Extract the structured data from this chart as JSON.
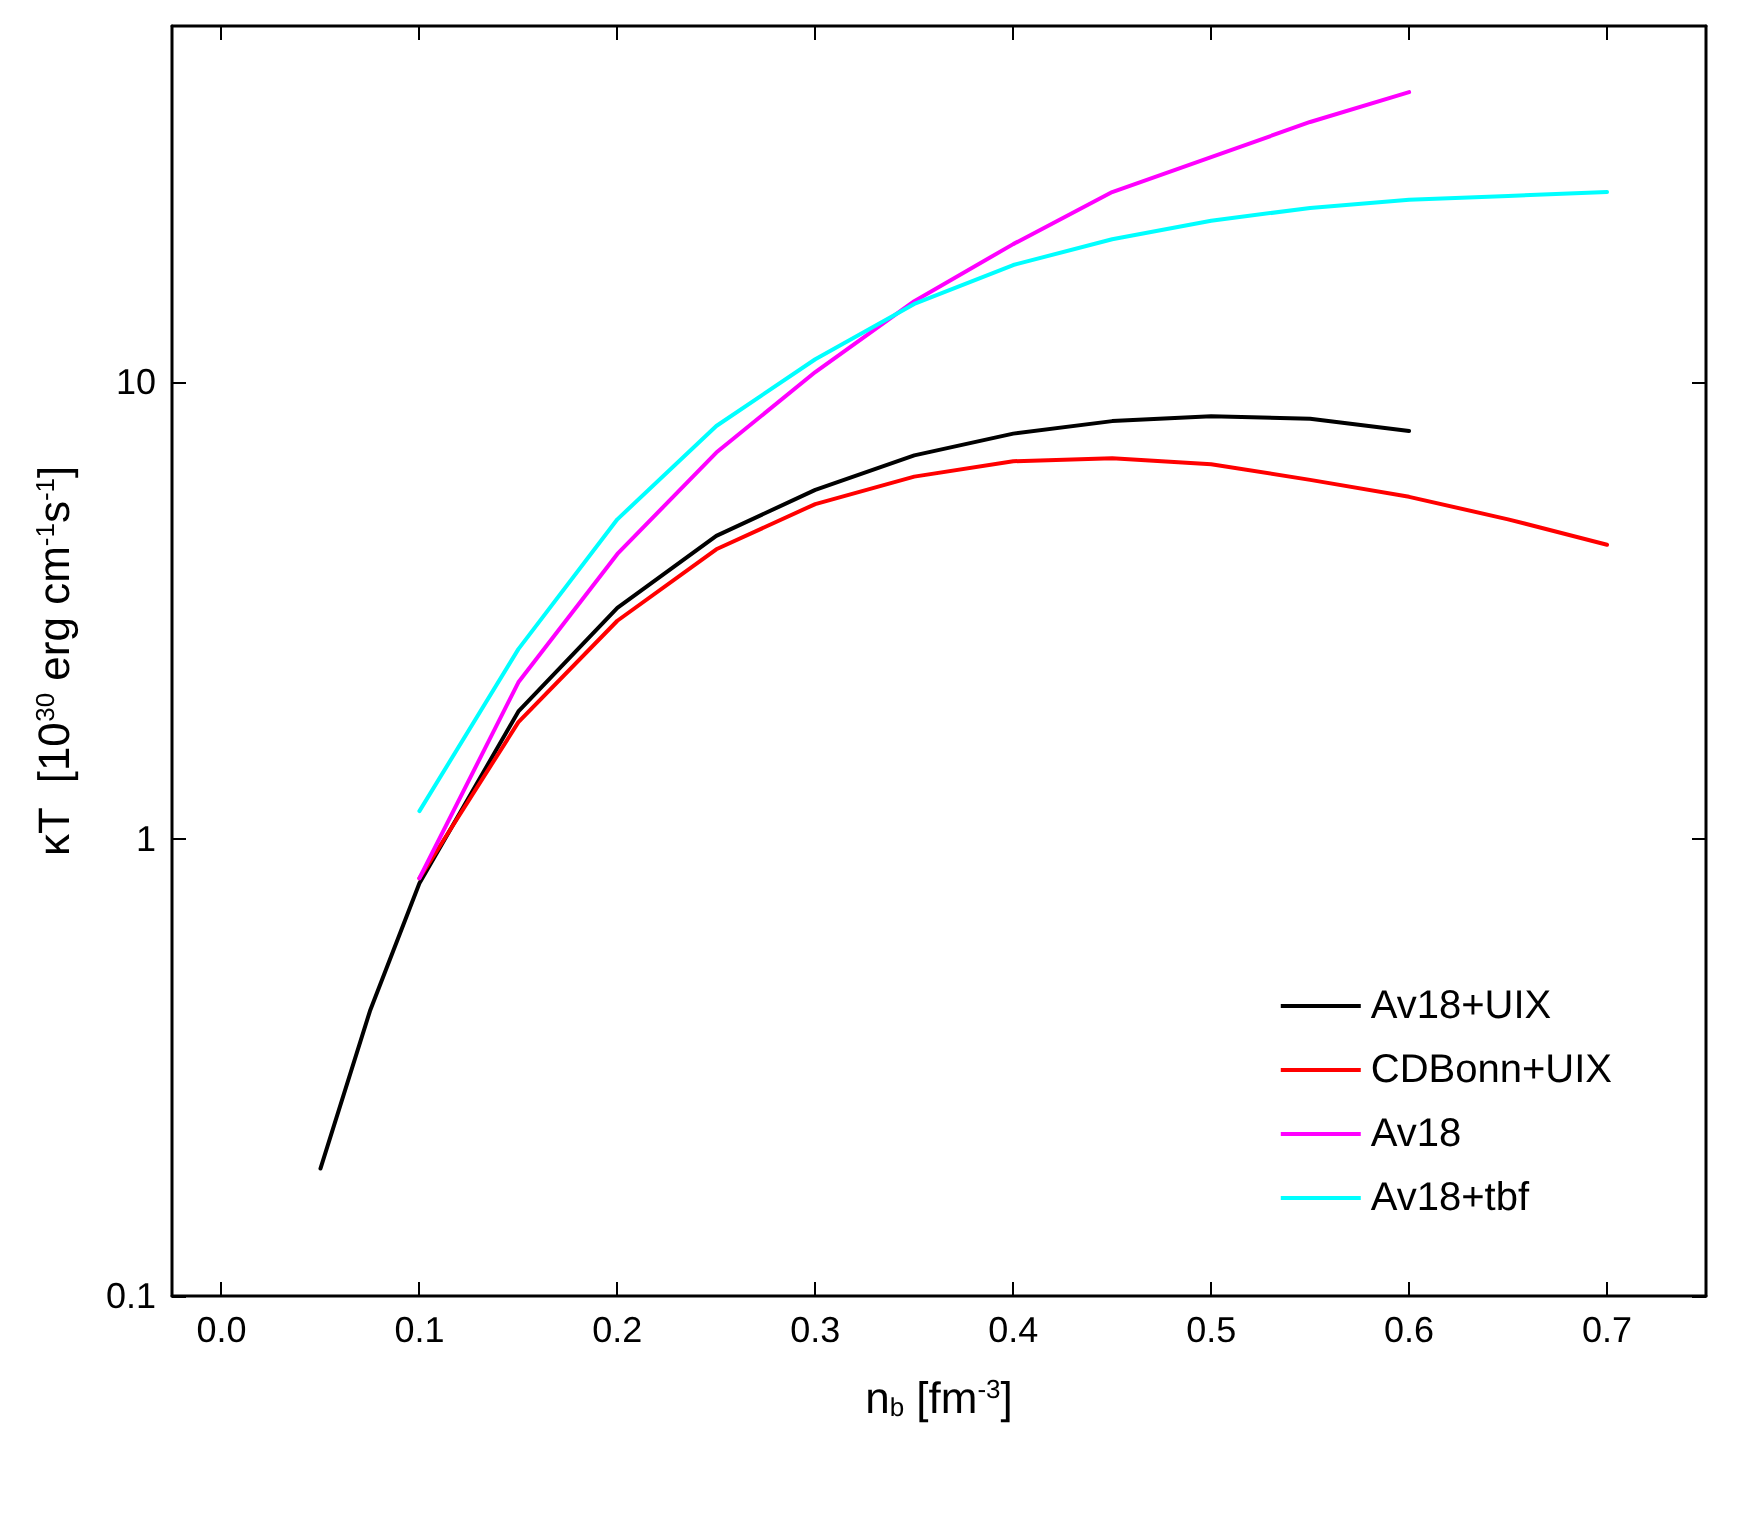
{
  "chart_data": {
    "type": "line",
    "xlabel": "n$_{b}$ [fm$^{-3}$]",
    "ylabel": "κT  [10$^{30}$ erg cm$^{-1}$s$^{-1}$]",
    "log": "y",
    "xlim": [
      -0.025,
      0.75
    ],
    "xticks": [
      {
        "value": 0,
        "label": "0.0"
      },
      0.1,
      0.2,
      0.3,
      0.4,
      0.5,
      0.6,
      0.7
    ],
    "ylim": [
      0.1,
      60
    ],
    "yticks": [
      0.1,
      1,
      10
    ],
    "legend": "right",
    "grid": false,
    "marker": "none",
    "line_style": "solid",
    "series": [
      {
        "name": "Av18+UIX",
        "color": "#000000",
        "x": [
          0.05,
          0.075,
          0.1,
          0.15,
          0.2,
          0.25,
          0.3,
          0.35,
          0.4,
          0.45,
          0.5,
          0.55,
          0.6
        ],
        "values": [
          0.19,
          0.42,
          0.8,
          1.9,
          3.2,
          4.6,
          5.8,
          6.9,
          7.7,
          8.2,
          8.4,
          8.3,
          7.8
        ]
      },
      {
        "name": "CDBonn+UIX",
        "color": "#ff0000",
        "x": [
          0.1,
          0.15,
          0.2,
          0.25,
          0.3,
          0.35,
          0.4,
          0.45,
          0.5,
          0.55,
          0.6,
          0.65,
          0.7
        ],
        "values": [
          0.82,
          1.8,
          3.0,
          4.3,
          5.4,
          6.2,
          6.7,
          6.8,
          6.6,
          6.1,
          5.6,
          5.0,
          4.4
        ]
      },
      {
        "name": "Av18",
        "color": "#ff00ff",
        "x": [
          0.1,
          0.15,
          0.2,
          0.25,
          0.3,
          0.35,
          0.4,
          0.45,
          0.5,
          0.55,
          0.6
        ],
        "values": [
          0.82,
          2.2,
          4.2,
          7.0,
          10.5,
          15,
          20,
          26,
          31,
          37,
          43
        ]
      },
      {
        "name": "Av18+tbf",
        "color": "#00ffff",
        "x": [
          0.1,
          0.15,
          0.2,
          0.25,
          0.3,
          0.35,
          0.4,
          0.45,
          0.5,
          0.55,
          0.6,
          0.65,
          0.7
        ],
        "values": [
          1.15,
          2.6,
          5.0,
          8.0,
          11.2,
          14.8,
          18.0,
          20.5,
          22.5,
          24,
          25,
          25.5,
          26
        ]
      }
    ]
  }
}
